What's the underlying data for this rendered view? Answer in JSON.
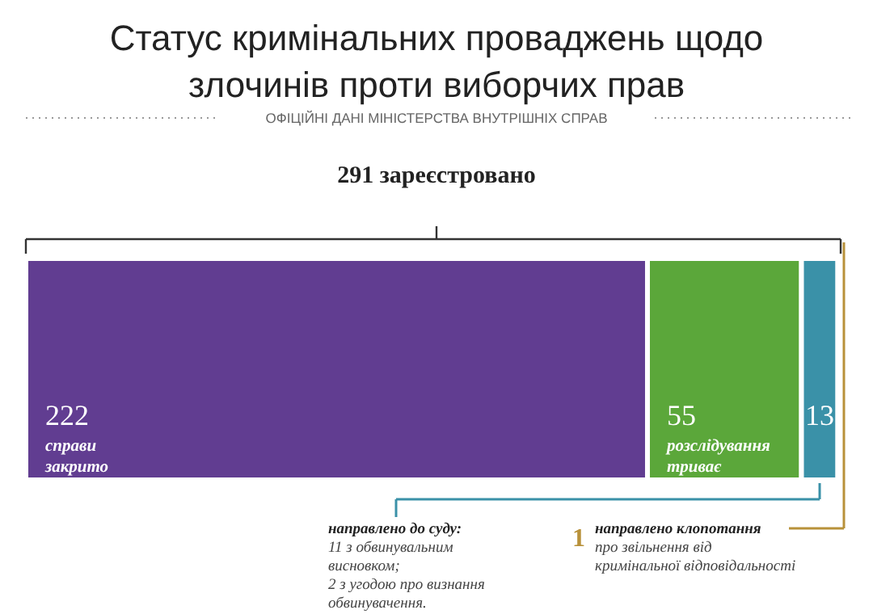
{
  "chart_data": {
    "type": "bar",
    "orientation": "horizontal",
    "stacked": true,
    "title": "Статус кримінальних проваджень щодо\nзлочинів проти виборчих прав",
    "subtitle": "ОФІЦІЙНІ ДАНІ МІНІСТЕРСТВА ВНУТРІШНІХ СПРАВ",
    "categories": [
      null
    ],
    "xlim": [
      0,
      291
    ],
    "series": [
      {
        "name": "справи закрито",
        "color": "#613d91",
        "values": [
          222
        ],
        "value_labels": [
          "222"
        ]
      },
      {
        "name": "розслідування триває",
        "color": "#5ba73a",
        "values": [
          55
        ],
        "value_labels": [
          "55"
        ]
      },
      {
        "color": "#3a91a8",
        "values": [
          13
        ],
        "value_labels": [
          "13"
        ]
      },
      {
        "color": "#b8913a",
        "values": [
          1
        ],
        "value_labels": [
          null
        ]
      }
    ],
    "annotations": [
      "291 зареєстровано",
      "направлено до суду:\n11 з обвинувальним\nвисновком;\n2 з угодою про визнання\nобвинувачення.",
      "1",
      "направлено клопотання\nпро звільнення від\nкримінальної відповідальності"
    ]
  }
}
